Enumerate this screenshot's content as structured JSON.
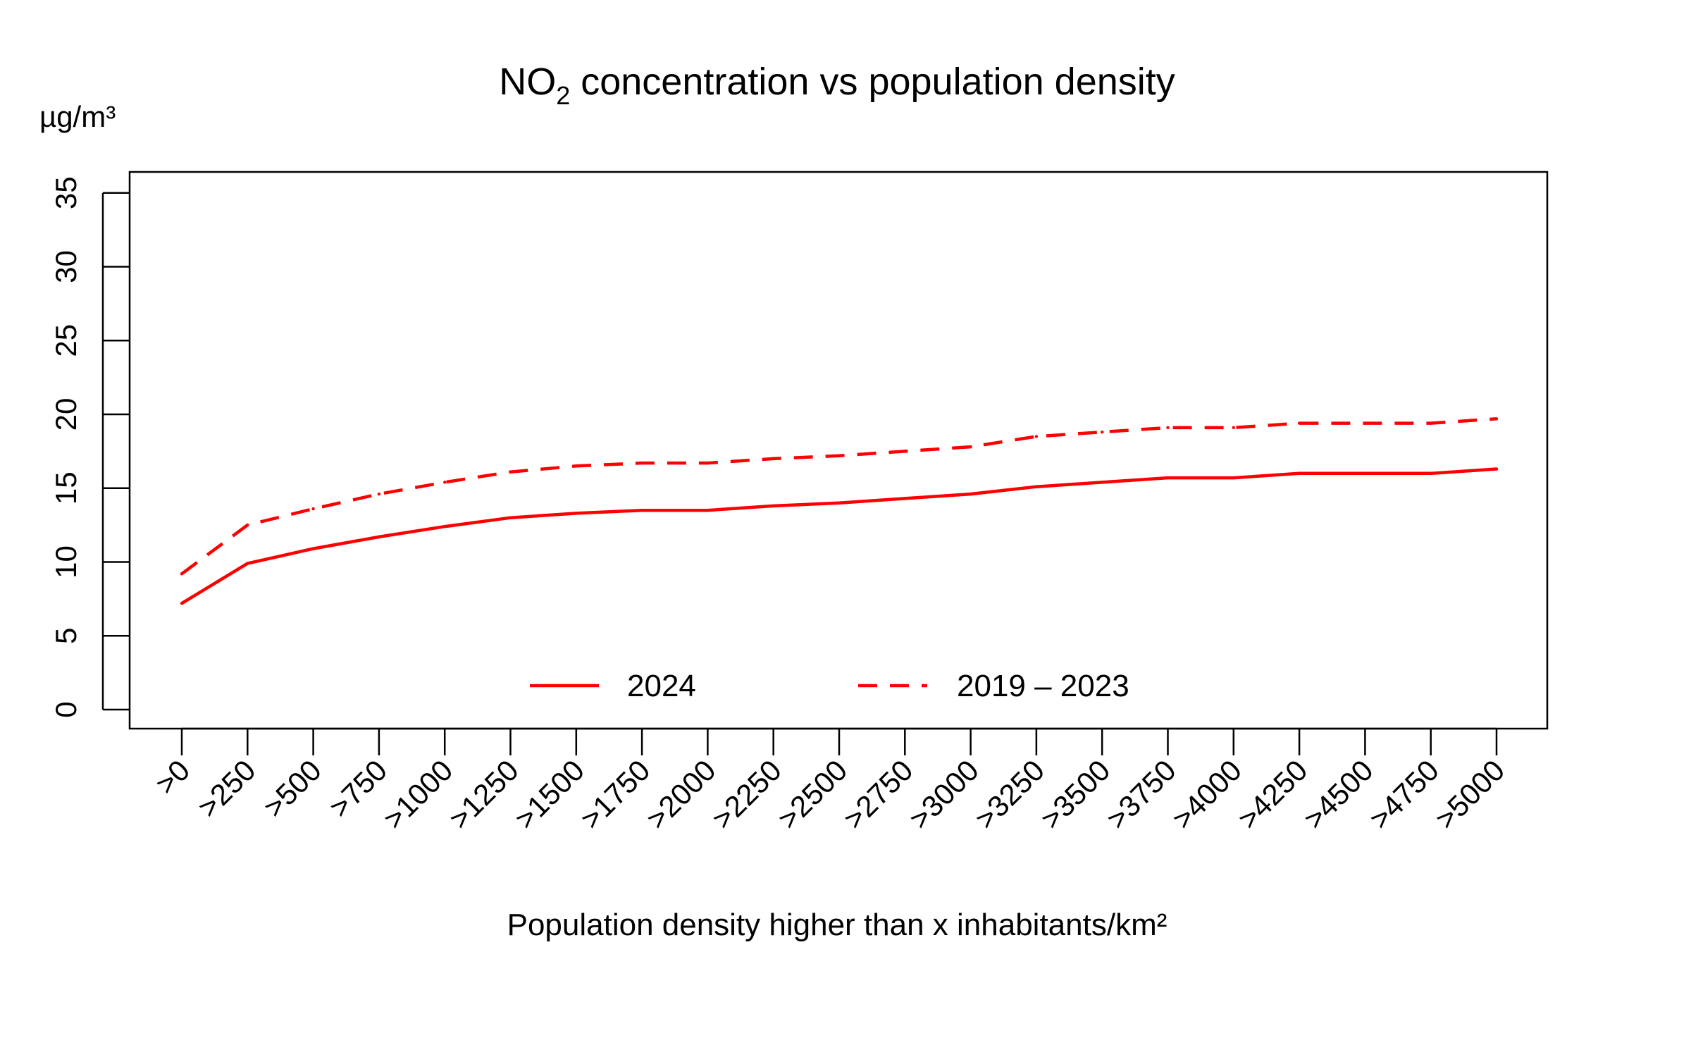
{
  "chart_data": {
    "type": "line",
    "title": "NO2 concentration vs population density",
    "title_parts": {
      "before": "NO",
      "subscript": "2",
      "after": " concentration vs population density"
    },
    "ylabel": "µg/m³",
    "xlabel": "Population density higher than x inhabitants/km²",
    "ylim": [
      0,
      35
    ],
    "yticks": [
      0,
      5,
      10,
      15,
      20,
      25,
      30,
      35
    ],
    "categories": [
      ">0",
      ">250",
      ">500",
      ">750",
      ">1000",
      ">1250",
      ">1500",
      ">1750",
      ">2000",
      ">2250",
      ">2500",
      ">2750",
      ">3000",
      ">3250",
      ">3500",
      ">3750",
      ">4000",
      ">4250",
      ">4500",
      ">4750",
      ">5000"
    ],
    "series": [
      {
        "name": "2024",
        "style": "solid",
        "color": "#ff0000",
        "values": [
          7.2,
          9.9,
          10.9,
          11.7,
          12.4,
          13.0,
          13.3,
          13.5,
          13.5,
          13.8,
          14.0,
          14.3,
          14.6,
          15.1,
          15.4,
          15.7,
          15.7,
          16.0,
          16.0,
          16.0,
          16.3
        ]
      },
      {
        "name": "2019 – 2023",
        "style": "dashed",
        "color": "#ff0000",
        "values": [
          9.2,
          12.5,
          13.6,
          14.6,
          15.4,
          16.1,
          16.5,
          16.7,
          16.7,
          17.0,
          17.2,
          17.5,
          17.8,
          18.5,
          18.8,
          19.1,
          19.1,
          19.4,
          19.4,
          19.4,
          19.7
        ]
      }
    ],
    "grid": false,
    "legend_position": "bottom-center"
  }
}
